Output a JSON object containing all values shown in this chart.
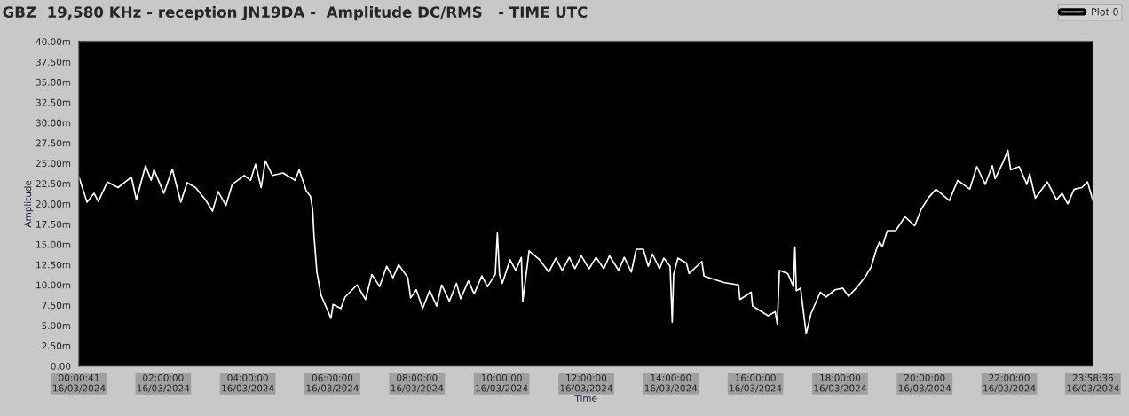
{
  "chart_data": {
    "type": "line",
    "title": "GBZ  19,580 KHz - reception JN19DA -  Amplitude DC/RMS   - TIME UTC",
    "xlabel": "Time",
    "ylabel": "Amplitude",
    "series": [
      {
        "name": "Plot 0",
        "color": "#ffffff",
        "x": [
          "2024-03-16T00:00:41",
          "2024-03-16T00:12",
          "2024-03-16T00:22",
          "2024-03-16T00:28",
          "2024-03-16T00:41",
          "2024-03-16T00:56",
          "2024-03-16T01:15",
          "2024-03-16T01:22",
          "2024-03-16T01:35",
          "2024-03-16T01:43",
          "2024-03-16T01:47",
          "2024-03-16T02:01",
          "2024-03-16T02:13",
          "2024-03-16T02:25",
          "2024-03-16T02:34",
          "2024-03-16T02:46",
          "2024-03-16T03:00",
          "2024-03-16T03:10",
          "2024-03-16T03:18",
          "2024-03-16T03:29",
          "2024-03-16T03:38",
          "2024-03-16T03:55",
          "2024-03-16T04:04",
          "2024-03-16T04:11",
          "2024-03-16T04:19",
          "2024-03-16T04:25",
          "2024-03-16T04:35",
          "2024-03-16T04:50",
          "2024-03-16T05:07",
          "2024-03-16T05:13",
          "2024-03-16T05:23",
          "2024-03-16T05:29",
          "2024-03-16T05:32",
          "2024-03-16T05:34",
          "2024-03-16T05:38",
          "2024-03-16T05:44",
          "2024-03-16T05:58",
          "2024-03-16T06:01",
          "2024-03-16T06:12",
          "2024-03-16T06:18",
          "2024-03-16T06:35",
          "2024-03-16T06:47",
          "2024-03-16T06:56",
          "2024-03-16T07:07",
          "2024-03-16T07:17",
          "2024-03-16T07:26",
          "2024-03-16T07:34",
          "2024-03-16T07:47",
          "2024-03-16T07:51",
          "2024-03-16T07:59",
          "2024-03-16T08:08",
          "2024-03-16T08:18",
          "2024-03-16T08:28",
          "2024-03-16T08:35",
          "2024-03-16T08:46",
          "2024-03-16T08:56",
          "2024-03-16T09:02",
          "2024-03-16T09:13",
          "2024-03-16T09:21",
          "2024-03-16T09:32",
          "2024-03-16T09:40",
          "2024-03-16T09:51",
          "2024-03-16T09:54",
          "2024-03-16T09:57",
          "2024-03-16T10:01",
          "2024-03-16T10:12",
          "2024-03-16T10:20",
          "2024-03-16T10:28",
          "2024-03-16T10:30",
          "2024-03-16T10:39",
          "2024-03-16T10:54",
          "2024-03-16T11:07",
          "2024-03-16T11:17",
          "2024-03-16T11:26",
          "2024-03-16T11:36",
          "2024-03-16T11:44",
          "2024-03-16T11:53",
          "2024-03-16T12:04",
          "2024-03-16T12:14",
          "2024-03-16T12:25",
          "2024-03-16T12:33",
          "2024-03-16T12:46",
          "2024-03-16T12:54",
          "2024-03-16T13:04",
          "2024-03-16T13:11",
          "2024-03-16T13:21",
          "2024-03-16T13:28",
          "2024-03-16T13:34",
          "2024-03-16T13:44",
          "2024-03-16T13:50",
          "2024-03-16T13:59",
          "2024-03-16T14:02",
          "2024-03-16T14:04",
          "2024-03-16T14:10",
          "2024-03-16T14:22",
          "2024-03-16T14:26",
          "2024-03-16T14:44",
          "2024-03-16T14:47",
          "2024-03-16T15:15",
          "2024-03-16T15:36",
          "2024-03-16T15:38",
          "2024-03-16T15:54",
          "2024-03-16T15:56",
          "2024-03-16T16:18",
          "2024-03-16T16:28",
          "2024-03-16T16:31",
          "2024-03-16T16:34",
          "2024-03-16T16:46",
          "2024-03-16T16:54",
          "2024-03-16T16:56",
          "2024-03-16T16:58",
          "2024-03-16T17:04",
          "2024-03-16T17:12",
          "2024-03-16T17:19",
          "2024-03-16T17:29",
          "2024-03-16T17:32",
          "2024-03-16T17:40",
          "2024-03-16T17:53",
          "2024-03-16T18:04",
          "2024-03-16T18:12",
          "2024-03-16T18:25",
          "2024-03-16T18:35",
          "2024-03-16T18:44",
          "2024-03-16T18:52",
          "2024-03-16T18:56",
          "2024-03-16T19:00",
          "2024-03-16T19:07",
          "2024-03-16T19:19",
          "2024-03-16T19:32",
          "2024-03-16T19:46",
          "2024-03-16T19:55",
          "2024-03-16T20:05",
          "2024-03-16T20:16",
          "2024-03-16T20:35",
          "2024-03-16T20:47",
          "2024-03-16T21:04",
          "2024-03-16T21:14",
          "2024-03-16T21:26",
          "2024-03-16T21:36",
          "2024-03-16T21:40",
          "2024-03-16T21:51",
          "2024-03-16T21:58",
          "2024-03-16T22:02",
          "2024-03-16T22:14",
          "2024-03-16T22:25",
          "2024-03-16T22:29",
          "2024-03-16T22:37",
          "2024-03-16T22:54",
          "2024-03-16T23:07",
          "2024-03-16T23:15",
          "2024-03-16T23:23",
          "2024-03-16T23:32",
          "2024-03-16T23:43",
          "2024-03-16T23:51",
          "2024-03-16T23:58:36"
        ],
        "values": [
          23.3,
          20.2,
          21.3,
          20.3,
          22.7,
          22.0,
          23.3,
          20.5,
          24.7,
          22.9,
          24.2,
          21.3,
          24.3,
          20.2,
          22.6,
          22.0,
          20.5,
          19.1,
          21.5,
          19.8,
          22.4,
          23.5,
          22.9,
          24.9,
          22.0,
          25.3,
          23.5,
          23.8,
          22.9,
          24.2,
          21.6,
          20.9,
          19.3,
          16.0,
          11.6,
          8.7,
          5.9,
          7.6,
          7.1,
          8.5,
          10.0,
          8.2,
          11.3,
          9.8,
          12.3,
          10.9,
          12.5,
          10.9,
          8.4,
          9.4,
          7.1,
          9.3,
          7.4,
          10.0,
          8.0,
          10.2,
          8.3,
          10.5,
          8.9,
          11.1,
          9.8,
          11.3,
          16.4,
          11.3,
          10.2,
          13.1,
          11.8,
          13.4,
          8.0,
          14.2,
          13.1,
          11.6,
          13.3,
          11.8,
          13.4,
          12.0,
          13.6,
          12.0,
          13.4,
          12.0,
          13.6,
          11.8,
          13.4,
          11.6,
          14.4,
          14.4,
          12.3,
          13.8,
          12.0,
          13.3,
          12.3,
          5.4,
          11.3,
          13.3,
          12.7,
          11.4,
          12.9,
          11.1,
          10.3,
          10.0,
          8.2,
          9.1,
          7.4,
          6.2,
          6.7,
          5.2,
          11.8,
          11.4,
          9.8,
          14.7,
          9.3,
          9.6,
          4.0,
          6.5,
          8.5,
          9.1,
          8.5,
          9.4,
          9.6,
          8.6,
          9.8,
          10.9,
          12.2,
          14.5,
          15.3,
          14.7,
          16.7,
          16.7,
          18.4,
          17.3,
          19.3,
          20.7,
          21.8,
          20.4,
          22.9,
          21.8,
          24.6,
          22.4,
          24.7,
          23.1,
          25.1,
          26.6,
          24.2,
          24.6,
          22.4,
          23.7,
          20.7,
          22.7,
          20.5,
          21.3,
          20.0,
          21.8,
          22.0,
          22.7,
          20.4
        ]
      }
    ],
    "xlim": [
      "2024-03-16T00:00:41",
      "2024-03-16T23:58:36"
    ],
    "xticks": [
      {
        "value": "2024-03-16T00:00:41",
        "label": "00:00:41\n16/03/2024"
      },
      {
        "value": "2024-03-16T02:00",
        "label": "02:00:00\n16/03/2024"
      },
      {
        "value": "2024-03-16T04:00",
        "label": "04:00:00\n16/03/2024"
      },
      {
        "value": "2024-03-16T06:00",
        "label": "06:00:00\n16/03/2024"
      },
      {
        "value": "2024-03-16T08:00",
        "label": "08:00:00\n16/03/2024"
      },
      {
        "value": "2024-03-16T10:00",
        "label": "10:00:00\n16/03/2024"
      },
      {
        "value": "2024-03-16T12:00",
        "label": "12:00:00\n16/03/2024"
      },
      {
        "value": "2024-03-16T14:00",
        "label": "14:00:00\n16/03/2024"
      },
      {
        "value": "2024-03-16T16:00",
        "label": "16:00:00\n16/03/2024"
      },
      {
        "value": "2024-03-16T18:00",
        "label": "18:00:00\n16/03/2024"
      },
      {
        "value": "2024-03-16T20:00",
        "label": "20:00:00\n16/03/2024"
      },
      {
        "value": "2024-03-16T22:00",
        "label": "22:00:00\n16/03/2024"
      },
      {
        "value": "2024-03-16T23:58:36",
        "label": "23:58:36\n16/03/2024"
      }
    ],
    "ylim": [
      0,
      40
    ],
    "yticks": [
      {
        "value": 0,
        "label": "0.00"
      },
      {
        "value": 2.5,
        "label": "2.50m"
      },
      {
        "value": 5,
        "label": "5.00m"
      },
      {
        "value": 7.5,
        "label": "7.50m"
      },
      {
        "value": 10,
        "label": "10.00m"
      },
      {
        "value": 12.5,
        "label": "12.50m"
      },
      {
        "value": 15,
        "label": "15.00m"
      },
      {
        "value": 17.5,
        "label": "17.50m"
      },
      {
        "value": 20,
        "label": "20.00m"
      },
      {
        "value": 22.5,
        "label": "22.50m"
      },
      {
        "value": 25,
        "label": "25.00m"
      },
      {
        "value": 27.5,
        "label": "27.50m"
      },
      {
        "value": 30,
        "label": "30.00m"
      },
      {
        "value": 32.5,
        "label": "32.50m"
      },
      {
        "value": 35,
        "label": "35.00m"
      },
      {
        "value": 37.5,
        "label": "37.50m"
      },
      {
        "value": 40,
        "label": "40.00m"
      }
    ],
    "grid": false,
    "legend": "top right",
    "marker": "none",
    "line_style": "solid"
  }
}
